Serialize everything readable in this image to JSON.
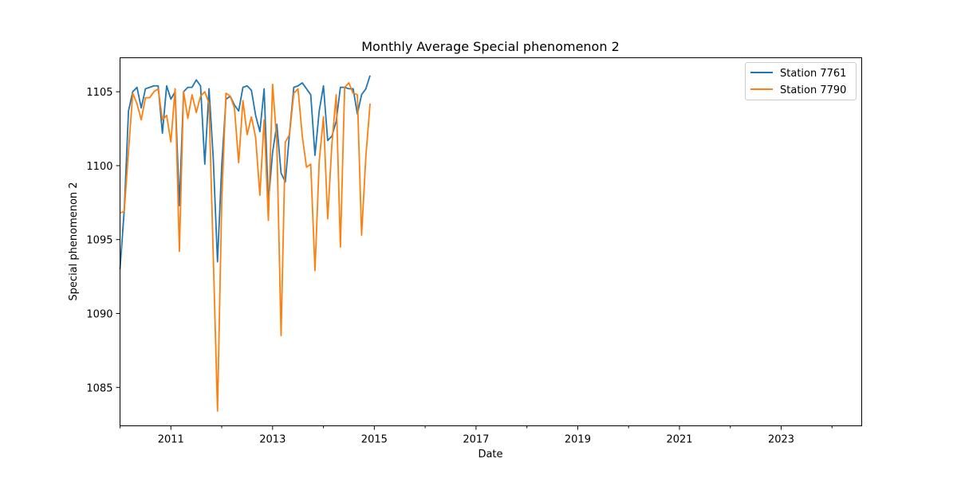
{
  "chart_data": {
    "type": "line",
    "title": "Monthly Average Special phenomenon 2",
    "xlabel": "Date",
    "ylabel": "Special phenomenon 2",
    "xlim": [
      "2010-01-01",
      "2024-08-01"
    ],
    "ylim": [
      1082.4,
      1107.3
    ],
    "x_tick_labels": [
      "2011",
      "2013",
      "2015",
      "2017",
      "2019",
      "2021",
      "2023"
    ],
    "y_ticks": [
      1085,
      1090,
      1095,
      1100,
      1105
    ],
    "grid": false,
    "legend_position": "top-right",
    "x": [
      "2010-01",
      "2010-02",
      "2010-03",
      "2010-04",
      "2010-05",
      "2010-06",
      "2010-07",
      "2010-08",
      "2010-09",
      "2010-10",
      "2010-11",
      "2010-12",
      "2011-01",
      "2011-02",
      "2011-03",
      "2011-04",
      "2011-05",
      "2011-06",
      "2011-07",
      "2011-08",
      "2011-09",
      "2011-10",
      "2011-11",
      "2011-12",
      "2012-01",
      "2012-02",
      "2012-03",
      "2012-04",
      "2012-05",
      "2012-06",
      "2012-07",
      "2012-08",
      "2012-09",
      "2012-10",
      "2012-11",
      "2012-12",
      "2013-01",
      "2013-02",
      "2013-03",
      "2013-04",
      "2013-05",
      "2013-06",
      "2013-07",
      "2013-08",
      "2013-09",
      "2013-10",
      "2013-11",
      "2013-12",
      "2014-01",
      "2014-02",
      "2014-03",
      "2014-04",
      "2014-05",
      "2014-06",
      "2014-07",
      "2014-08",
      "2014-09",
      "2014-10",
      "2014-11",
      "2014-12"
    ],
    "series": [
      {
        "name": "Station 7761",
        "color": "#1f77b4",
        "values": [
          1093.0,
          1097.0,
          1103.7,
          1105.0,
          1105.3,
          1103.9,
          1105.2,
          1105.3,
          1105.4,
          1105.4,
          1102.2,
          1105.4,
          1104.5,
          1105.0,
          1097.3,
          1105.0,
          1105.3,
          1105.3,
          1105.8,
          1105.4,
          1100.1,
          1105.2,
          1100.5,
          1093.5,
          1100.0,
          1104.5,
          1104.7,
          1104.1,
          1103.7,
          1105.3,
          1105.4,
          1105.1,
          1103.4,
          1102.3,
          1105.2,
          1097.5,
          1100.9,
          1102.8,
          1099.5,
          1098.9,
          1102.2,
          1105.3,
          1105.4,
          1105.6,
          1105.2,
          1104.8,
          1100.7,
          1103.7,
          1105.4,
          1101.7,
          1102.0,
          1103.0,
          1105.3,
          1105.3,
          1105.2,
          1105.2,
          1103.5,
          1104.8,
          1105.2,
          1106.1
        ]
      },
      {
        "name": "Station 7790",
        "color": "#ff7f0e",
        "values": [
          1096.8,
          1096.9,
          1101.0,
          1104.9,
          1104.2,
          1103.1,
          1104.6,
          1104.6,
          1105.0,
          1105.2,
          1103.1,
          1103.4,
          1101.6,
          1105.2,
          1094.2,
          1105.0,
          1103.2,
          1104.8,
          1103.6,
          1104.7,
          1105.0,
          1104.2,
          1093.9,
          1083.4,
          1097.6,
          1104.9,
          1104.7,
          1103.9,
          1100.2,
          1104.4,
          1102.1,
          1103.3,
          1101.9,
          1098.0,
          1103.1,
          1096.3,
          1105.5,
          1101.6,
          1088.5,
          1101.6,
          1102.1,
          1104.9,
          1105.2,
          1102.0,
          1099.9,
          1100.1,
          1092.9,
          1100.3,
          1103.3,
          1096.4,
          1101.5,
          1104.8,
          1094.5,
          1105.3,
          1105.6,
          1104.9,
          1104.8,
          1095.3,
          1100.6,
          1104.2
        ]
      }
    ]
  }
}
